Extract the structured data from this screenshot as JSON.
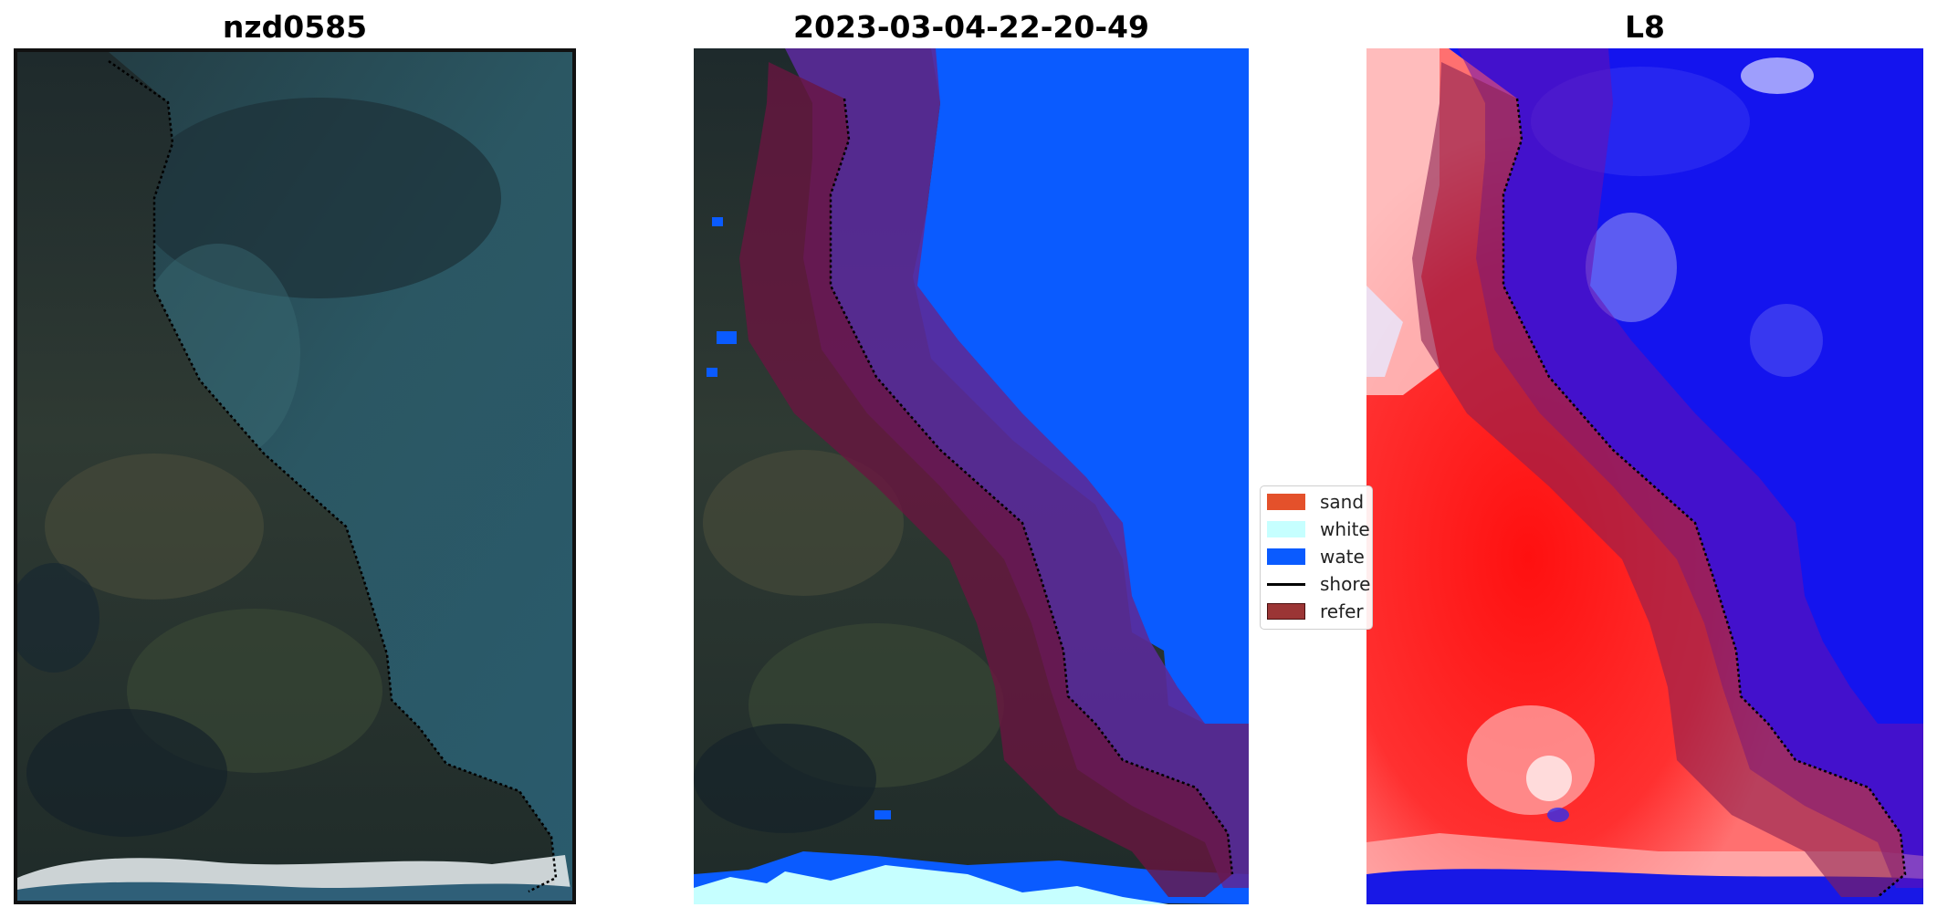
{
  "panels": [
    {
      "title": "nzd0585"
    },
    {
      "title": "2023-03-04-22-20-49"
    },
    {
      "title": "L8"
    }
  ],
  "legend": {
    "items": [
      {
        "label": "sand",
        "color": "#e4512b",
        "kind": "patch"
      },
      {
        "label": "white",
        "color": "#c6ffff",
        "kind": "patch"
      },
      {
        "label": "wate",
        "color": "#0a5bff",
        "kind": "patch"
      },
      {
        "label": "shore",
        "color": "#000000",
        "kind": "line"
      },
      {
        "label": "refer",
        "color": "#9b3535",
        "kind": "patch"
      }
    ]
  },
  "colors": {
    "water_class": "#0a5bff",
    "whitewater_class": "#c6ffff",
    "reference_buffer": "#7a1f4a",
    "shoreline": "#000000",
    "index_high": "#ff1a1a",
    "index_low": "#1010ee"
  }
}
